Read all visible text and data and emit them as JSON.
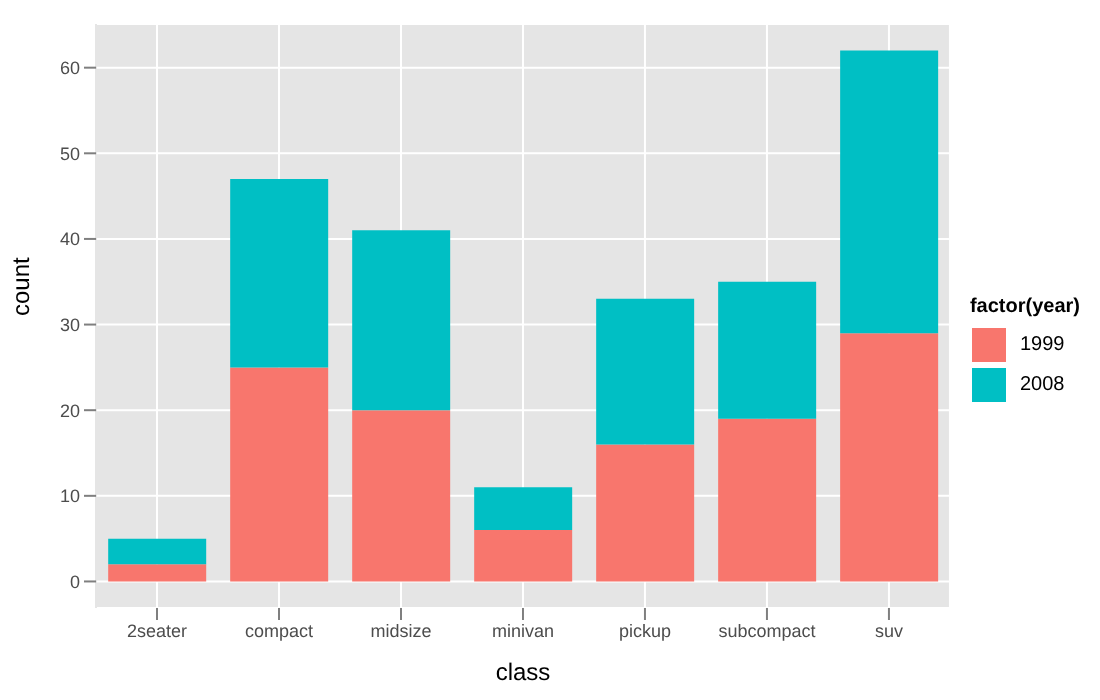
{
  "chart_data": {
    "type": "bar",
    "stacked": true,
    "xlabel": "class",
    "ylabel": "count",
    "legend_title": "factor(year)",
    "legend": "right",
    "grid": true,
    "categories": [
      "2seater",
      "compact",
      "midsize",
      "minivan",
      "pickup",
      "subcompact",
      "suv"
    ],
    "series": [
      {
        "name": "1999",
        "color": "#f8766d",
        "values": [
          2,
          25,
          20,
          6,
          16,
          19,
          29
        ]
      },
      {
        "name": "2008",
        "color": "#00bfc4",
        "values": [
          3,
          22,
          21,
          5,
          17,
          16,
          33
        ]
      }
    ],
    "ylim": [
      -3.1,
      65.1
    ],
    "yticks": [
      0,
      10,
      20,
      30,
      40,
      50,
      60
    ]
  }
}
